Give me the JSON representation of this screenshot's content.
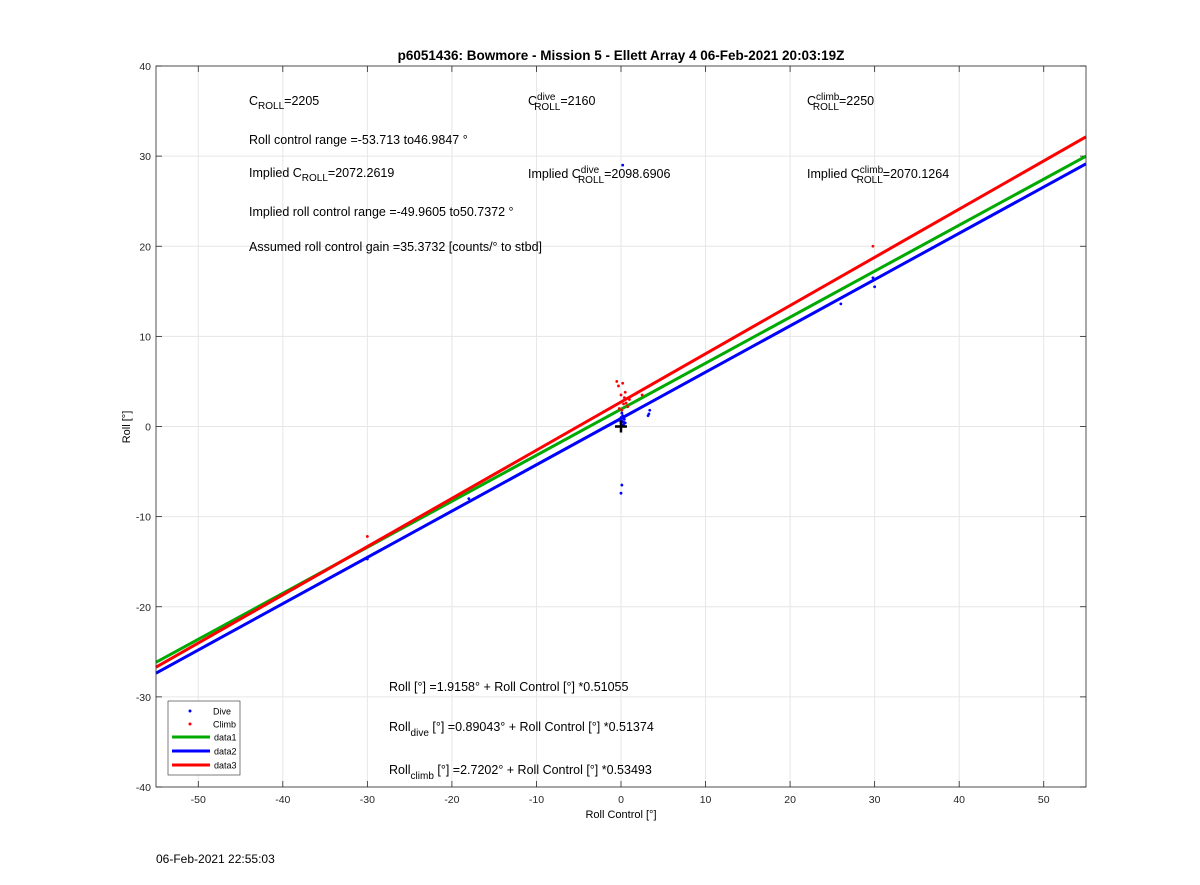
{
  "chart_data": {
    "type": "scatter",
    "title": "p6051436: Bowmore - Mission 5 - Ellett Array 4 06-Feb-2021 20:03:19Z",
    "xlabel": "Roll Control [°]",
    "ylabel": "Roll [°]",
    "xlim": [
      -55,
      55
    ],
    "ylim": [
      -40,
      40
    ],
    "xticks": [
      -50,
      -40,
      -30,
      -20,
      -10,
      0,
      10,
      20,
      30,
      40,
      50
    ],
    "yticks": [
      -40,
      -30,
      -20,
      -10,
      0,
      10,
      20,
      30,
      40
    ],
    "grid": true,
    "legend": {
      "location": "bottom-left"
    },
    "series": [
      {
        "name": "Dive",
        "kind": "points",
        "color": "#0000ff",
        "x": [
          -30,
          -18,
          0,
          0,
          0.1,
          0.2,
          0.3,
          0.4,
          0.5,
          0.1,
          0,
          0.2,
          0.1,
          0.3,
          -0.2,
          3.3,
          3.4,
          3.2,
          26,
          29.8,
          30,
          0.2,
          0.1
        ],
        "y": [
          -14.7,
          -8,
          0.4,
          1.0,
          0.6,
          1.2,
          0.2,
          0.8,
          0.4,
          -6.5,
          -7.4,
          0.9,
          1.5,
          0.5,
          0.7,
          1.4,
          1.8,
          1.2,
          13.6,
          16.5,
          15.5,
          29,
          0.1
        ]
      },
      {
        "name": "Climb",
        "kind": "points",
        "color": "#ff0000",
        "x": [
          -30,
          -0.5,
          -0.3,
          0,
          0.2,
          0.3,
          0.5,
          0.8,
          1.0,
          -0.2,
          0.1,
          0.4,
          0.6,
          29.8,
          2.5
        ],
        "y": [
          -12.2,
          5,
          4.5,
          3.5,
          4.8,
          2.5,
          3.8,
          2.2,
          3.0,
          2.0,
          1.8,
          3.2,
          2.6,
          20,
          3.5
        ]
      },
      {
        "name": "data1",
        "kind": "line",
        "color": "#00aa00",
        "intercept": 1.9158,
        "slope": 0.51055
      },
      {
        "name": "data2",
        "kind": "line",
        "color": "#0000ff",
        "intercept": 0.89043,
        "slope": 0.51374
      },
      {
        "name": "data3",
        "kind": "line",
        "color": "#ff0000",
        "intercept": 2.7202,
        "slope": 0.53493
      }
    ],
    "annotations": {
      "c_roll": {
        "sym": "C",
        "sub": "ROLL",
        "val": "=2205"
      },
      "c_dive": {
        "sym": "C",
        "sup": "dive",
        "sub": "ROLL",
        "val": "=2160"
      },
      "c_climb": {
        "sym": "C",
        "sup": "climb",
        "sub": "ROLL",
        "val": "=2250"
      },
      "range": "Roll control range =-53.713 to46.9847 °",
      "implied_c_roll": {
        "pre": "Implied C",
        "sub": "ROLL",
        "val": "=2072.2619"
      },
      "implied_c_dive": {
        "pre": "Implied C",
        "sup": "dive",
        "sub": "ROLL",
        "val": "=2098.6906"
      },
      "implied_c_climb": {
        "pre": "Implied C",
        "sup": "climb",
        "sub": "ROLL",
        "val": "=2070.1264"
      },
      "implied_range": "Implied roll control range =-49.9605 to50.7372 °",
      "gain": "Assumed roll control gain =35.3732 [counts/° to stbd]",
      "fit_all": {
        "pre": "Roll",
        "post": " [°] =1.9158° + Roll Control [°] *0.51055"
      },
      "fit_dive": {
        "pre": "Roll",
        "sub": "dive",
        "post": " [°] =0.89043° + Roll Control [°] *0.51374"
      },
      "fit_climb": {
        "pre": "Roll",
        "sub": "climb",
        "post": " [°] =2.7202° + Roll Control [°] *0.53493"
      }
    }
  },
  "footer": {
    "timestamp": "06-Feb-2021 22:55:03"
  }
}
